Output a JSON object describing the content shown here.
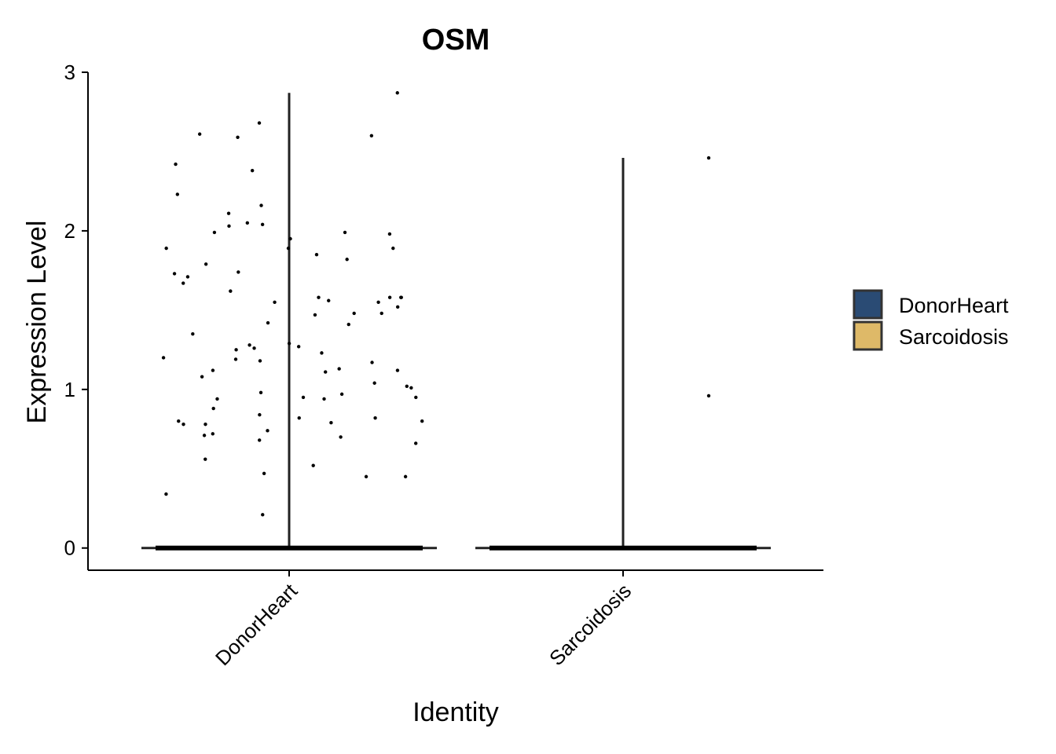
{
  "chart_data": {
    "type": "violin",
    "title": "OSM",
    "xlabel": "Identity",
    "ylabel": "Expression Level",
    "categories": [
      "DonorHeart",
      "Sarcoidosis"
    ],
    "ylim": [
      -0.14,
      3.0
    ],
    "yticks": [
      0,
      1,
      2,
      3
    ],
    "grid": false,
    "legend": {
      "position": "right",
      "entries": [
        {
          "label": "DonorHeart",
          "color": "#2a4b74"
        },
        {
          "label": "Sarcoidosis",
          "color": "#deb968"
        }
      ]
    },
    "violins": [
      {
        "category": "DonorHeart",
        "max": 2.87,
        "min": 0
      },
      {
        "category": "Sarcoidosis",
        "max": 2.46,
        "min": 0
      }
    ],
    "points": [
      {
        "category": "DonorHeart",
        "values": [
          1.89,
          1.58,
          1.73,
          0.98,
          1.12,
          1.35,
          1.26,
          1.29,
          1.23,
          0.94,
          1.71,
          0.45,
          2.16,
          0.71,
          1.89,
          1.62,
          1.67,
          1.41,
          1.25,
          1.19,
          1.2,
          1.98,
          1.79,
          1.55,
          1.42,
          0.56,
          0.95,
          1.28,
          1.99,
          1.85,
          0.8,
          1.08,
          2.04,
          1.89,
          0.8,
          2.38,
          0.94,
          1.47,
          2.87,
          2.03,
          2.68,
          1.55,
          0.68,
          0.45,
          0.21,
          0.84,
          0.72,
          0.78,
          0.7,
          2.23,
          1.99,
          1.82,
          2.6,
          1.58,
          1.58,
          1.17,
          0.97,
          0.52,
          1.95,
          0.66,
          2.11,
          2.59,
          2.61,
          2.05,
          1.11,
          1.13,
          0.88,
          1.52,
          1.01,
          1.74,
          1.27,
          1.18,
          0.34,
          1.02,
          0.47,
          0.82,
          0.82,
          0.74,
          2.42,
          1.48,
          1.48,
          1.12,
          0.95,
          0.78,
          0.79,
          1.56,
          1.58,
          1.04
        ]
      },
      {
        "category": "Sarcoidosis",
        "values": [
          2.46,
          0.96
        ]
      }
    ]
  }
}
